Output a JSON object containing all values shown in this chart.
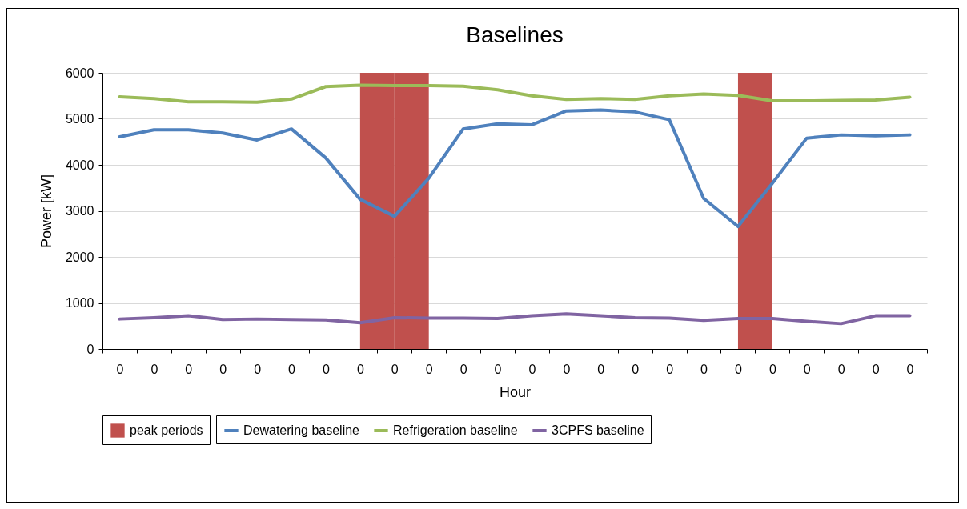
{
  "chart_data": {
    "type": "line",
    "title": "Baselines",
    "xlabel": "Hour",
    "ylabel": "Power [kW]",
    "categories": [
      "0",
      "0",
      "0",
      "0",
      "0",
      "0",
      "0",
      "0",
      "0",
      "0",
      "0",
      "0",
      "0",
      "0",
      "0",
      "0",
      "0",
      "0",
      "0",
      "0",
      "0",
      "0",
      "0",
      "0"
    ],
    "series": [
      {
        "name": "peak periods",
        "type": "bar",
        "color": "#c0504d",
        "values": [
          null,
          null,
          null,
          null,
          null,
          null,
          null,
          6000,
          6000,
          null,
          null,
          null,
          null,
          null,
          null,
          null,
          null,
          null,
          6000,
          null,
          null,
          null,
          null,
          null
        ]
      },
      {
        "name": "Dewatering baseline",
        "color": "#4f81bd",
        "values": [
          4610,
          4760,
          4760,
          4690,
          4540,
          4780,
          4150,
          3250,
          2880,
          3710,
          4780,
          4890,
          4870,
          5170,
          5190,
          5150,
          4980,
          3270,
          2660,
          3600,
          4580,
          4650,
          4630,
          4650
        ]
      },
      {
        "name": "Refrigeration baseline",
        "color": "#9bbb59",
        "values": [
          5480,
          5440,
          5370,
          5370,
          5360,
          5430,
          5700,
          5730,
          5720,
          5720,
          5710,
          5630,
          5500,
          5420,
          5440,
          5420,
          5500,
          5540,
          5510,
          5390,
          5390,
          5400,
          5410,
          5470
        ]
      },
      {
        "name": "3CPFS baseline",
        "color": "#8064a2",
        "values": [
          650,
          680,
          720,
          640,
          650,
          640,
          630,
          570,
          680,
          670,
          670,
          660,
          720,
          760,
          720,
          680,
          670,
          620,
          660,
          660,
          600,
          550,
          720,
          720
        ]
      }
    ],
    "ylim": [
      0,
      6000
    ],
    "yticks": [
      0,
      1000,
      2000,
      3000,
      4000,
      5000,
      6000
    ],
    "grid": "y",
    "legend": "bottom"
  }
}
